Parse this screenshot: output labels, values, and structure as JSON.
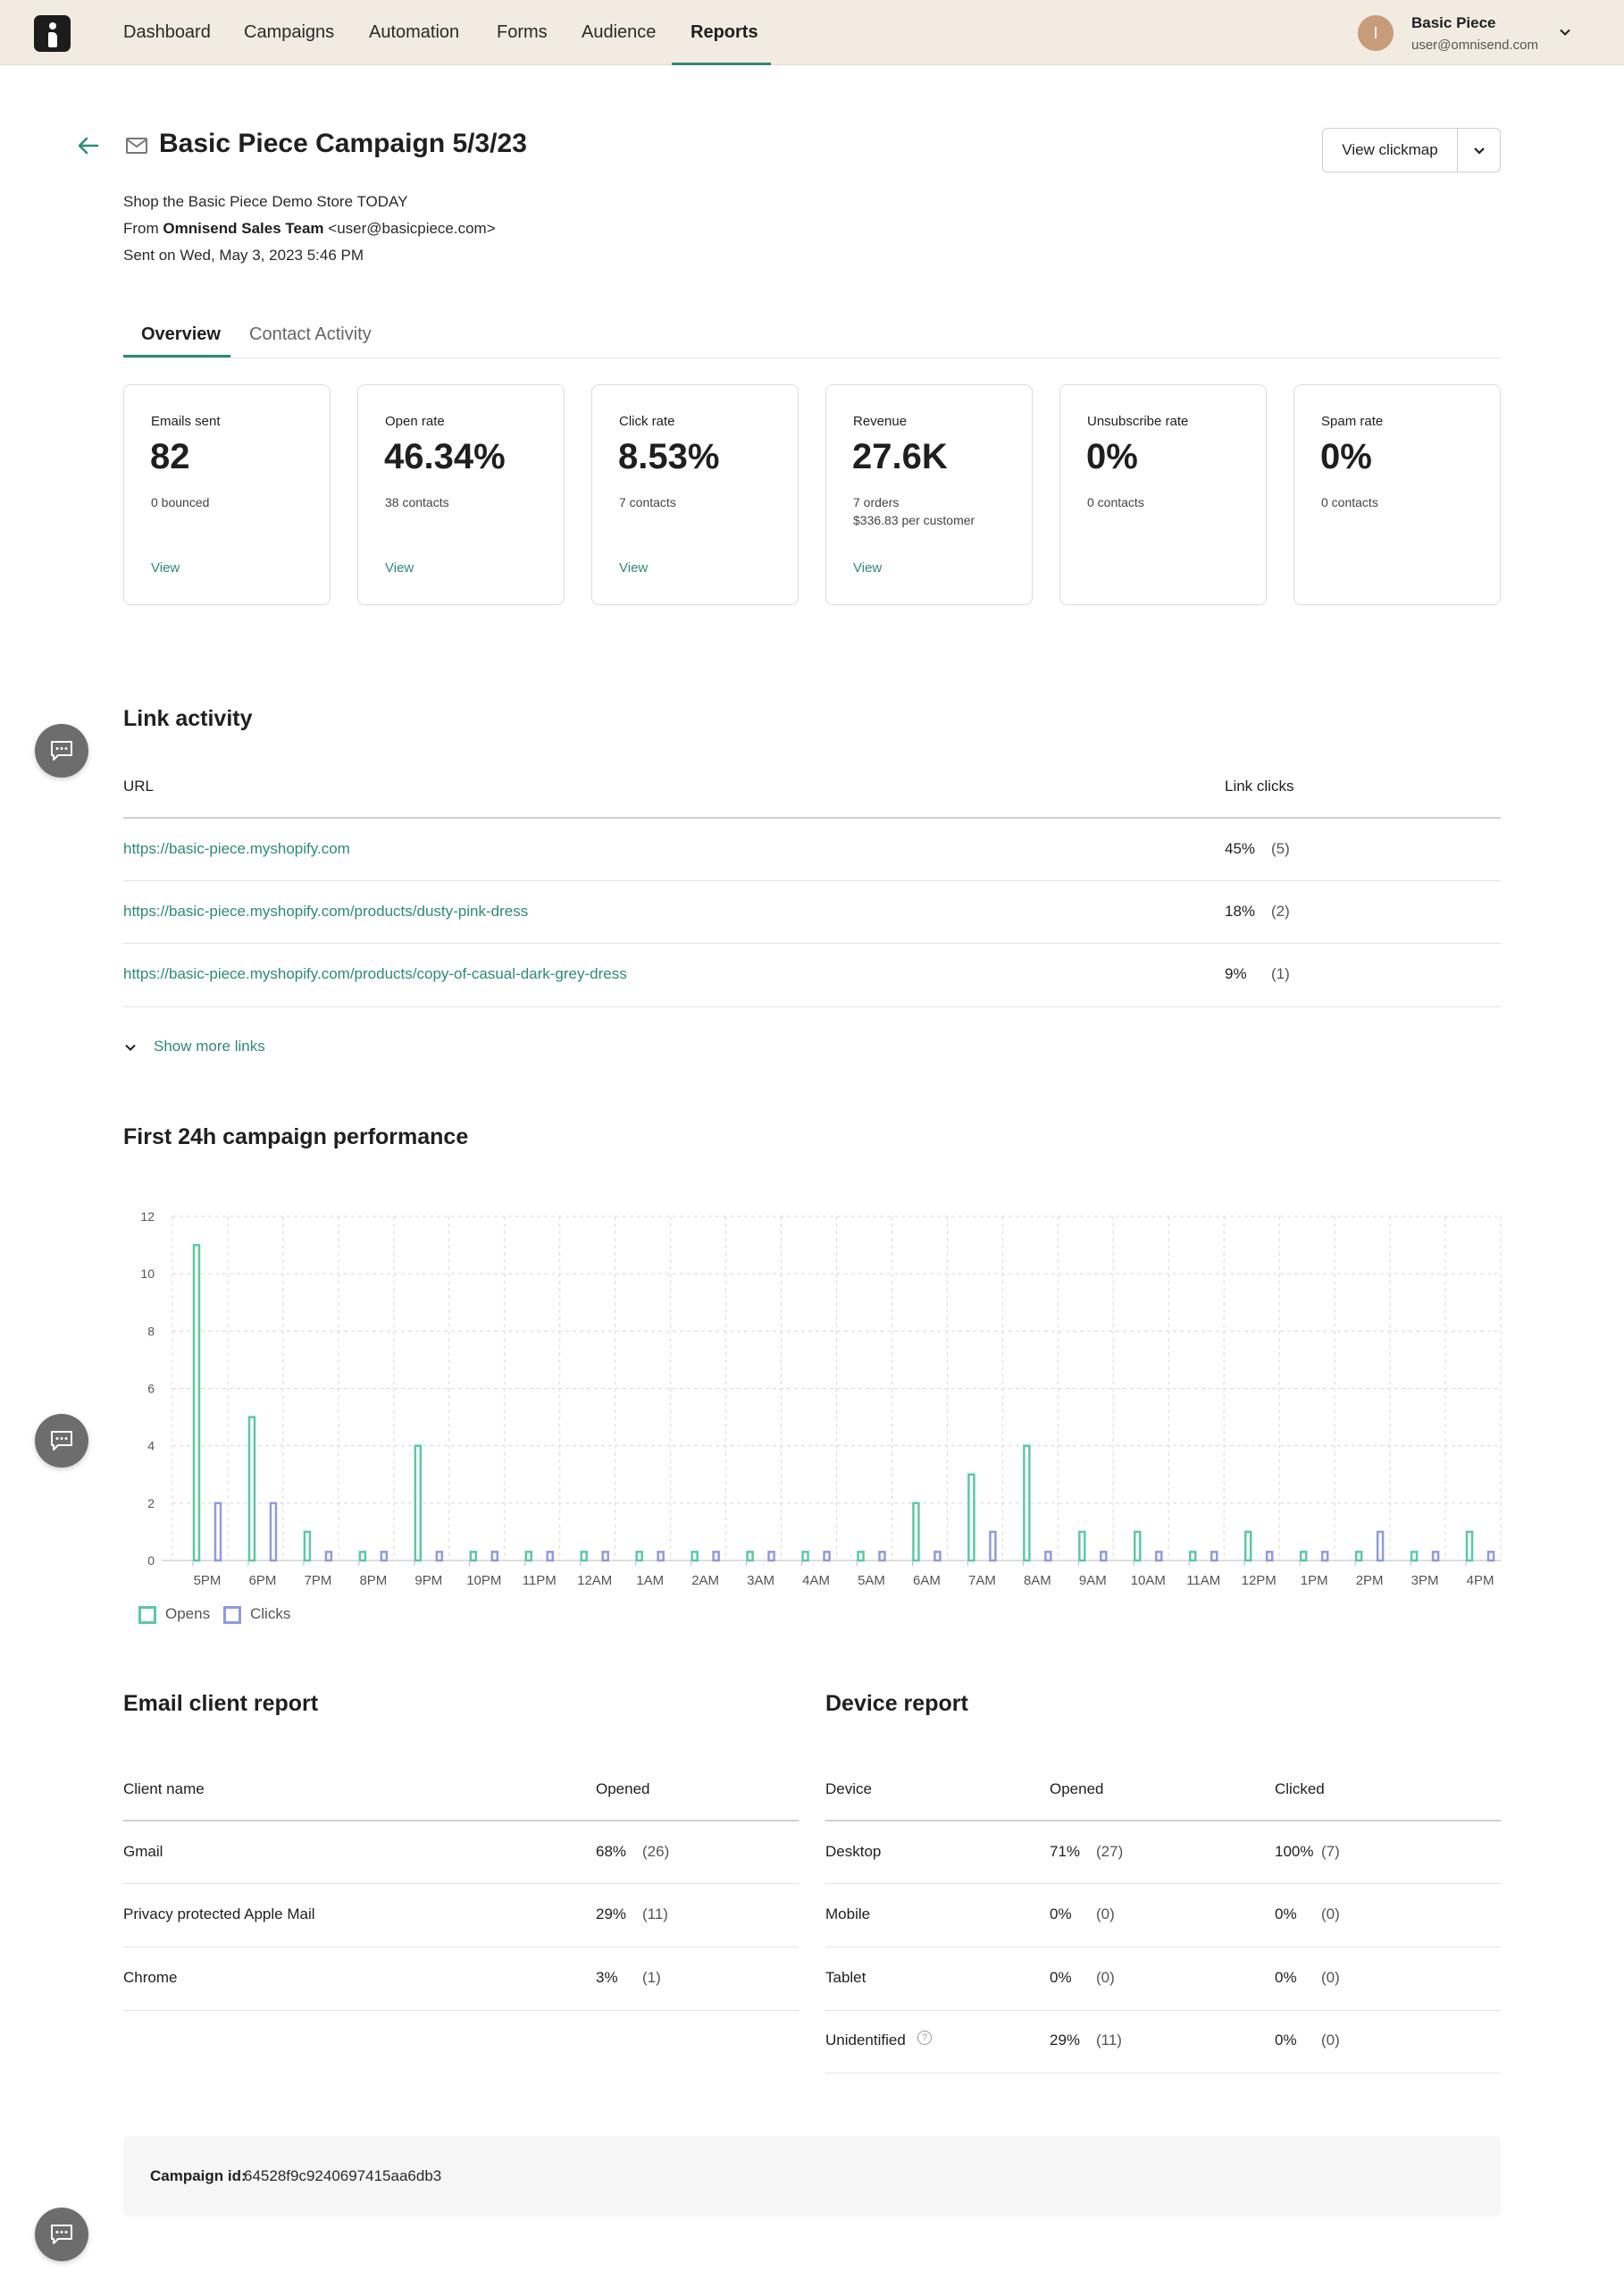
{
  "nav": {
    "items": [
      {
        "key": "dashboard",
        "label": "Dashboard"
      },
      {
        "key": "campaigns",
        "label": "Campaigns"
      },
      {
        "key": "automation",
        "label": "Automation"
      },
      {
        "key": "forms",
        "label": "Forms"
      },
      {
        "key": "audience",
        "label": "Audience"
      },
      {
        "key": "reports",
        "label": "Reports"
      }
    ],
    "active": "reports"
  },
  "user": {
    "initial": "I",
    "name": "Basic Piece",
    "email": "user@omnisend.com"
  },
  "header": {
    "title": "Basic Piece Campaign 5/3/23",
    "clickmap_label": "View clickmap",
    "subject": "Shop the Basic Piece Demo Store TODAY",
    "from_prefix": "From",
    "from_name": "Omnisend Sales Team",
    "from_email": "<user@basicpiece.com>",
    "sent_on": "Sent on Wed, May 3, 2023 5:46 PM"
  },
  "tabs": [
    {
      "label": "Overview",
      "active": true
    },
    {
      "label": "Contact Activity",
      "active": false
    }
  ],
  "cards": [
    {
      "label": "Emails sent",
      "value": "82",
      "sub": [
        "0 bounced"
      ],
      "link": "View"
    },
    {
      "label": "Open rate",
      "value": "46.34%",
      "sub": [
        "38 contacts"
      ],
      "link": "View"
    },
    {
      "label": "Click rate",
      "value": "8.53%",
      "sub": [
        "7 contacts"
      ],
      "link": "View"
    },
    {
      "label": "Revenue",
      "value": "27.6K",
      "sub": [
        "7 orders",
        "$336.83 per customer"
      ],
      "link": "View"
    },
    {
      "label": "Unsubscribe rate",
      "value": "0%",
      "sub": [
        "0 contacts"
      ],
      "link": ""
    },
    {
      "label": "Spam rate",
      "value": "0%",
      "sub": [
        "0 contacts"
      ],
      "link": ""
    }
  ],
  "link_activity": {
    "title": "Link activity",
    "col_url": "URL",
    "col_clicks": "Link clicks",
    "rows": [
      {
        "url": "https://basic-piece.myshopify.com",
        "pct": "45%",
        "count": "(5)"
      },
      {
        "url": "https://basic-piece.myshopify.com/products/dusty-pink-dress",
        "pct": "18%",
        "count": "(2)"
      },
      {
        "url": "https://basic-piece.myshopify.com/products/copy-of-casual-dark-grey-dress",
        "pct": "9%",
        "count": "(1)"
      }
    ],
    "show_more": "Show more links"
  },
  "performance_title": "First 24h campaign performance",
  "chart_data": {
    "type": "bar",
    "categories": [
      "5PM",
      "6PM",
      "7PM",
      "8PM",
      "9PM",
      "10PM",
      "11PM",
      "12AM",
      "1AM",
      "2AM",
      "3AM",
      "4AM",
      "5AM",
      "6AM",
      "7AM",
      "8AM",
      "9AM",
      "10AM",
      "11AM",
      "12PM",
      "1PM",
      "2PM",
      "3PM",
      "4PM"
    ],
    "series": [
      {
        "name": "Opens",
        "color": "#5cc9a0",
        "values": [
          11,
          5,
          1,
          0,
          4,
          0,
          0,
          0,
          0,
          0,
          0,
          0,
          0,
          2,
          3,
          4,
          1,
          1,
          0,
          1,
          0,
          0,
          0,
          1
        ]
      },
      {
        "name": "Clicks",
        "color": "#8f9bde",
        "values": [
          2,
          2,
          0,
          0,
          0,
          0,
          0,
          0,
          0,
          0,
          0,
          0,
          0,
          0,
          1,
          0,
          0,
          0,
          0,
          0,
          0,
          1,
          0,
          0
        ]
      }
    ],
    "yticks": [
      "0",
      "2",
      "4",
      "6",
      "8",
      "10",
      "12"
    ],
    "ylim": [
      0,
      12
    ],
    "grid": true,
    "legend": "bottom-left"
  },
  "email_client": {
    "title": "Email client report",
    "col_name": "Client name",
    "col_opened": "Opened",
    "rows": [
      {
        "name": "Gmail",
        "pct": "68%",
        "count": "(26)"
      },
      {
        "name": "Privacy protected Apple Mail",
        "pct": "29%",
        "count": "(11)"
      },
      {
        "name": "Chrome",
        "pct": "3%",
        "count": "(1)"
      }
    ]
  },
  "device": {
    "title": "Device report",
    "col_device": "Device",
    "col_opened": "Opened",
    "col_clicked": "Clicked",
    "rows": [
      {
        "name": "Desktop",
        "open_pct": "71%",
        "open_count": "(27)",
        "click_pct": "100%",
        "click_count": "(7)"
      },
      {
        "name": "Mobile",
        "open_pct": "0%",
        "open_count": "(0)",
        "click_pct": "0%",
        "click_count": "(0)"
      },
      {
        "name": "Tablet",
        "open_pct": "0%",
        "open_count": "(0)",
        "click_pct": "0%",
        "click_count": "(0)"
      },
      {
        "name": "Unidentified",
        "open_pct": "29%",
        "open_count": "(11)",
        "click_pct": "0%",
        "click_count": "(0)"
      }
    ],
    "help_glyph": "?"
  },
  "campaign": {
    "id_label": "Campaign id:",
    "id_value": "64528f9c9240697415aa6db3"
  }
}
